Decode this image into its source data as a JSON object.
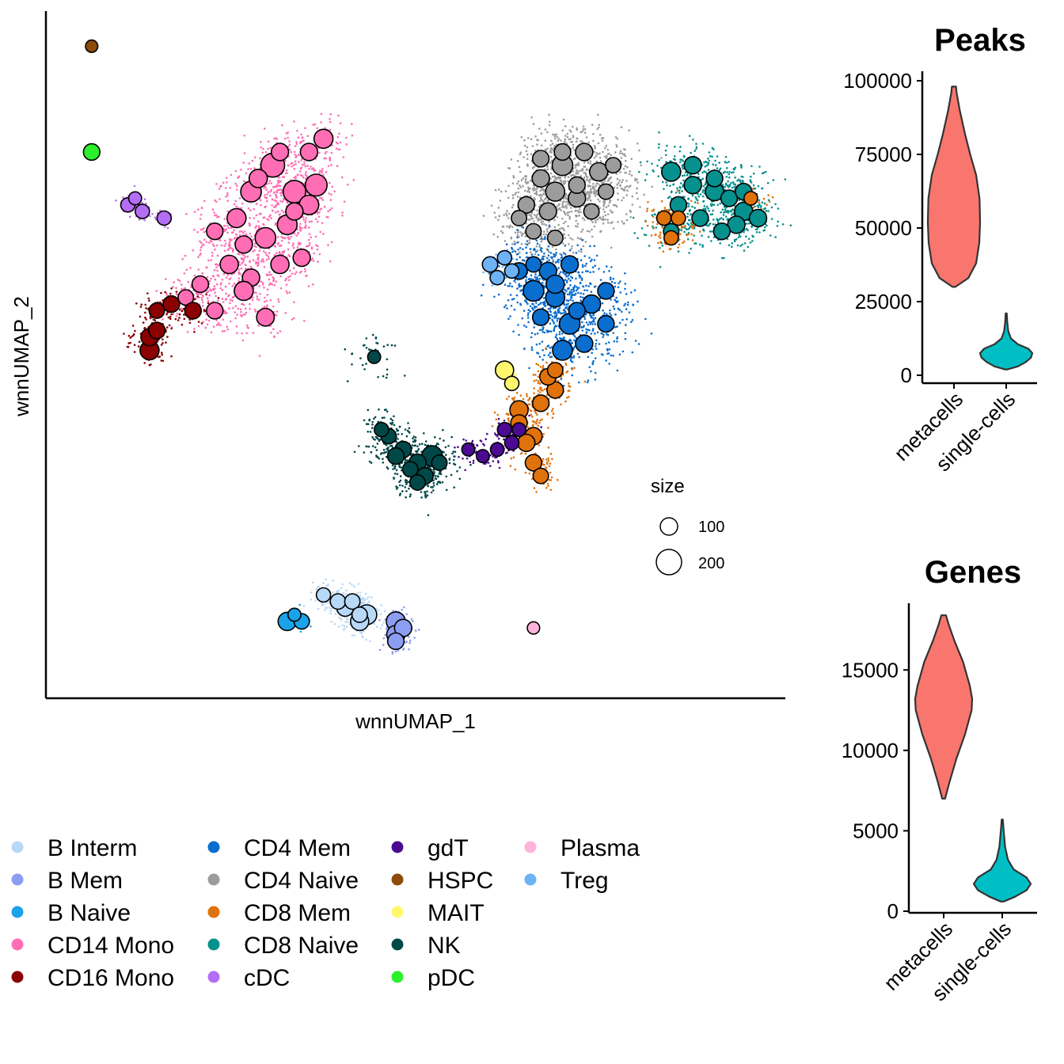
{
  "chart_data": [
    {
      "type": "scatter",
      "title": "",
      "xlabel": "wnnUMAP_1",
      "ylabel": "wnnUMAP_2",
      "size_legend": {
        "title": "size",
        "entries": [
          {
            "label": "100",
            "value": 100
          },
          {
            "label": "200",
            "value": 200
          }
        ]
      },
      "legend": {
        "placement": "bottom",
        "entries": [
          {
            "label": "B Interm",
            "color": "#B8D8F7"
          },
          {
            "label": "B Mem",
            "color": "#8C9EF2"
          },
          {
            "label": "B Naive",
            "color": "#1AA3E8"
          },
          {
            "label": "CD14 Mono",
            "color": "#FF6EB4"
          },
          {
            "label": "CD16 Mono",
            "color": "#8B0000"
          },
          {
            "label": "CD4 Mem",
            "color": "#0A6ECF"
          },
          {
            "label": "CD4 Naive",
            "color": "#9C9C9C"
          },
          {
            "label": "CD8 Mem",
            "color": "#E0720C"
          },
          {
            "label": "CD8 Naive",
            "color": "#06908E"
          },
          {
            "label": "cDC",
            "color": "#B36EF5"
          },
          {
            "label": "gdT",
            "color": "#4B0A91"
          },
          {
            "label": "HSPC",
            "color": "#8E4A09"
          },
          {
            "label": "MAIT",
            "color": "#FFF76E"
          },
          {
            "label": "NK",
            "color": "#004848"
          },
          {
            "label": "pDC",
            "color": "#2BF02B"
          },
          {
            "label": "Plasma",
            "color": "#FFB3DA"
          },
          {
            "label": "Treg",
            "color": "#6DB3F5"
          }
        ]
      },
      "x_range": [
        0,
        100
      ],
      "y_range": [
        0,
        100
      ],
      "series": [
        {
          "name": "CD14 Mono",
          "color": "#FF6EB4",
          "spread": 6,
          "points": [
            [
              30,
              78,
              160
            ],
            [
              27,
              74,
              110
            ],
            [
              33,
              74,
              140
            ],
            [
              25,
              70,
              90
            ],
            [
              29,
              67,
              110
            ],
            [
              32,
              69,
              100
            ],
            [
              36,
              75,
              130
            ],
            [
              35,
              72,
              95
            ],
            [
              24,
              63,
              80
            ],
            [
              27,
              61,
              70
            ],
            [
              31,
              63,
              80
            ],
            [
              26,
              59,
              90
            ],
            [
              20,
              60,
              60
            ],
            [
              18,
              58,
              50
            ],
            [
              22,
              56,
              60
            ],
            [
              29,
              55,
              75
            ],
            [
              34,
              64,
              70
            ],
            [
              26,
              66,
              70
            ],
            [
              31,
              80,
              70
            ],
            [
              37,
              82,
              90
            ],
            [
              35,
              80,
              70
            ],
            [
              28,
              76,
              80
            ],
            [
              33,
              71,
              70
            ],
            [
              22,
              68,
              60
            ]
          ]
        },
        {
          "name": "CD16 Mono",
          "color": "#8B0000",
          "spread": 4,
          "points": [
            [
              13,
              50,
              90
            ],
            [
              13,
              52,
              70
            ],
            [
              14,
              53,
              60
            ],
            [
              14,
              56,
              50
            ],
            [
              16,
              57,
              60
            ],
            [
              19,
              56,
              60
            ]
          ]
        },
        {
          "name": "cDC",
          "color": "#B36EF5",
          "spread": 2,
          "points": [
            [
              10,
              72,
              40
            ],
            [
              11,
              73,
              30
            ],
            [
              12,
              71,
              40
            ],
            [
              15,
              70,
              40
            ]
          ]
        },
        {
          "name": "pDC",
          "color": "#2BF02B",
          "spread": 1,
          "points": [
            [
              5,
              80,
              60
            ]
          ]
        },
        {
          "name": "HSPC",
          "color": "#8E4A09",
          "spread": 0,
          "points": [
            [
              5,
              96,
              25
            ]
          ]
        },
        {
          "name": "CD4 Naive",
          "color": "#9C9C9C",
          "spread": 7,
          "points": [
            [
              70,
              78,
              110
            ],
            [
              69,
              74,
              90
            ],
            [
              72,
              73,
              70
            ],
            [
              75,
              77,
              80
            ],
            [
              73,
              80,
              70
            ],
            [
              67,
              76,
              70
            ],
            [
              65,
              72,
              60
            ],
            [
              68,
              71,
              70
            ],
            [
              72,
              75,
              60
            ],
            [
              76,
              74,
              50
            ],
            [
              77,
              78,
              50
            ],
            [
              66,
              68,
              50
            ],
            [
              69,
              67,
              50
            ],
            [
              74,
              71,
              50
            ],
            [
              67,
              79,
              60
            ],
            [
              70,
              80,
              60
            ],
            [
              64,
              70,
              50
            ]
          ]
        },
        {
          "name": "CD4 Mem",
          "color": "#0A6ECF",
          "spread": 7,
          "points": [
            [
              66,
              59,
              110
            ],
            [
              69,
              58,
              90
            ],
            [
              71,
              54,
              110
            ],
            [
              74,
              57,
              80
            ],
            [
              71,
              63,
              70
            ],
            [
              68,
              62,
              70
            ],
            [
              64,
              62,
              60
            ],
            [
              67,
              55,
              60
            ],
            [
              70,
              50,
              100
            ],
            [
              73,
              51,
              70
            ],
            [
              76,
              59,
              60
            ],
            [
              76,
              54,
              60
            ],
            [
              69,
              60,
              80
            ],
            [
              72,
              56,
              60
            ],
            [
              66,
              63,
              50
            ]
          ]
        },
        {
          "name": "Treg",
          "color": "#6DB3F5",
          "spread": 2,
          "points": [
            [
              60,
              63,
              50
            ],
            [
              61,
              61,
              40
            ],
            [
              63,
              62,
              40
            ],
            [
              62,
              64,
              40
            ]
          ]
        },
        {
          "name": "CD8 Naive",
          "color": "#06908E",
          "spread": 6,
          "points": [
            [
              85,
              77,
              90
            ],
            [
              88,
              75,
              70
            ],
            [
              91,
              74,
              80
            ],
            [
              93,
              73,
              60
            ],
            [
              95,
              71,
              80
            ],
            [
              97,
              70,
              70
            ],
            [
              94,
              69,
              70
            ],
            [
              92,
              68,
              60
            ],
            [
              89,
              70,
              60
            ],
            [
              86,
              72,
              60
            ],
            [
              88,
              78,
              70
            ],
            [
              91,
              76,
              60
            ],
            [
              85,
              68,
              50
            ],
            [
              95,
              74,
              60
            ]
          ]
        },
        {
          "name": "CD8 Mem",
          "color": "#E0720C",
          "spread": 4,
          "points": [
            [
              64,
              41,
              80
            ],
            [
              66,
              37,
              70
            ],
            [
              67,
              42,
              60
            ],
            [
              65,
              36,
              70
            ],
            [
              69,
              44,
              60
            ],
            [
              68,
              46,
              60
            ],
            [
              69,
              47,
              50
            ],
            [
              66,
              33,
              60
            ],
            [
              67,
              31,
              50
            ],
            [
              64,
              39,
              60
            ],
            [
              84,
              70,
              40
            ],
            [
              86,
              70,
              40
            ],
            [
              85,
              67,
              40
            ],
            [
              96,
              73,
              35
            ]
          ]
        },
        {
          "name": "gdT",
          "color": "#4B0A91",
          "spread": 3,
          "points": [
            [
              63,
              36,
              40
            ],
            [
              62,
              38,
              40
            ],
            [
              61,
              35,
              35
            ],
            [
              59,
              34,
              30
            ],
            [
              57,
              35,
              30
            ],
            [
              64,
              38,
              35
            ]
          ]
        },
        {
          "name": "MAIT",
          "color": "#FFF76E",
          "spread": 2,
          "points": [
            [
              62,
              47,
              80
            ],
            [
              63,
              45,
              40
            ]
          ]
        },
        {
          "name": "NK",
          "color": "#004848",
          "spread": 5,
          "points": [
            [
              52,
              34,
              110
            ],
            [
              50,
              33,
              70
            ],
            [
              48,
              35,
              60
            ],
            [
              51,
              31,
              60
            ],
            [
              53,
              33,
              50
            ],
            [
              47,
              34,
              60
            ],
            [
              46,
              37,
              50
            ],
            [
              45,
              38,
              40
            ],
            [
              49,
              32,
              50
            ],
            [
              44,
              49,
              30
            ],
            [
              50,
              30,
              50
            ]
          ]
        },
        {
          "name": "B Interm",
          "color": "#B8D8F7",
          "spread": 4,
          "points": [
            [
              43,
              10,
              100
            ],
            [
              42,
              9,
              80
            ],
            [
              40,
              11,
              60
            ],
            [
              39,
              12,
              50
            ],
            [
              37,
              13,
              40
            ],
            [
              41,
              12,
              50
            ],
            [
              42,
              10,
              50
            ]
          ]
        },
        {
          "name": "B Naive",
          "color": "#1AA3E8",
          "spread": 2,
          "points": [
            [
              32,
              9,
              80
            ],
            [
              34,
              9,
              50
            ],
            [
              33,
              10,
              30
            ]
          ]
        },
        {
          "name": "B Mem",
          "color": "#8C9EF2",
          "spread": 3,
          "points": [
            [
              47,
              9,
              90
            ],
            [
              47,
              7,
              80
            ],
            [
              48,
              8,
              70
            ],
            [
              47,
              6,
              60
            ]
          ]
        },
        {
          "name": "Plasma",
          "color": "#FFB3DA",
          "spread": 0,
          "points": [
            [
              66,
              8,
              25
            ]
          ]
        }
      ]
    },
    {
      "type": "violin",
      "title": "Peaks",
      "categories": [
        "metacells",
        "single-cells"
      ],
      "ylim": [
        0,
        100000
      ],
      "yticks": [
        "0",
        "25000",
        "50000",
        "75000",
        "100000"
      ],
      "ytick_values": [
        0,
        25000,
        50000,
        75000,
        100000
      ],
      "series": [
        {
          "category": "metacells",
          "color": "#F8766D",
          "min": 30000,
          "max": 98000,
          "profile": [
            [
              30000,
              0.05
            ],
            [
              33000,
              0.55
            ],
            [
              38000,
              0.85
            ],
            [
              45000,
              0.97
            ],
            [
              52000,
              1.0
            ],
            [
              60000,
              0.98
            ],
            [
              68000,
              0.85
            ],
            [
              75000,
              0.62
            ],
            [
              82000,
              0.42
            ],
            [
              90000,
              0.22
            ],
            [
              96000,
              0.1
            ],
            [
              98000,
              0.08
            ]
          ]
        },
        {
          "category": "single-cells",
          "color": "#00BFC4",
          "min": 2000,
          "max": 21000,
          "profile": [
            [
              2000,
              0.05
            ],
            [
              3000,
              0.45
            ],
            [
              4500,
              0.75
            ],
            [
              6000,
              0.95
            ],
            [
              7500,
              1.0
            ],
            [
              9000,
              0.85
            ],
            [
              10500,
              0.45
            ],
            [
              12500,
              0.18
            ],
            [
              15000,
              0.08
            ],
            [
              18000,
              0.04
            ],
            [
              21000,
              0.02
            ]
          ]
        }
      ]
    },
    {
      "type": "violin",
      "title": "Genes",
      "categories": [
        "metacells",
        "single-cells"
      ],
      "ylim": [
        0,
        19000
      ],
      "yticks": [
        "0",
        "5000",
        "10000",
        "15000"
      ],
      "ytick_values": [
        0,
        5000,
        10000,
        15000
      ],
      "series": [
        {
          "category": "metacells",
          "color": "#F8766D",
          "min": 7000,
          "max": 18400,
          "profile": [
            [
              7000,
              0.05
            ],
            [
              8000,
              0.2
            ],
            [
              9500,
              0.45
            ],
            [
              11000,
              0.75
            ],
            [
              12500,
              0.98
            ],
            [
              13200,
              1.0
            ],
            [
              14000,
              0.92
            ],
            [
              15500,
              0.68
            ],
            [
              16800,
              0.38
            ],
            [
              17800,
              0.18
            ],
            [
              18400,
              0.08
            ]
          ]
        },
        {
          "category": "single-cells",
          "color": "#00BFC4",
          "min": 600,
          "max": 5700,
          "profile": [
            [
              600,
              0.05
            ],
            [
              900,
              0.45
            ],
            [
              1300,
              0.85
            ],
            [
              1700,
              1.0
            ],
            [
              2100,
              0.85
            ],
            [
              2600,
              0.4
            ],
            [
              3200,
              0.2
            ],
            [
              4000,
              0.1
            ],
            [
              5000,
              0.05
            ],
            [
              5700,
              0.02
            ]
          ]
        }
      ]
    }
  ]
}
